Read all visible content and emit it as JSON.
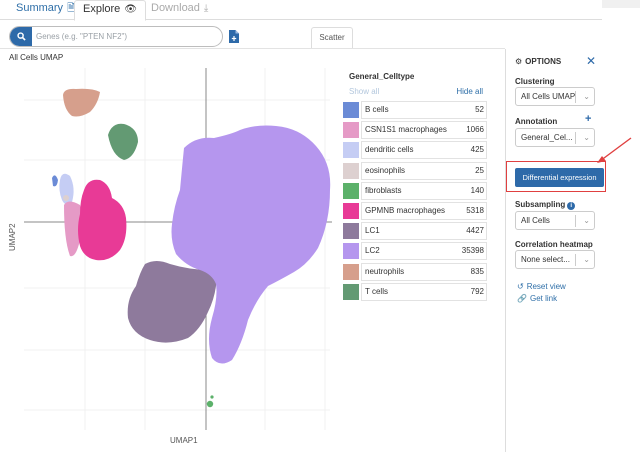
{
  "tabs": {
    "summary": "Summary",
    "explore": "Explore",
    "download": "Download"
  },
  "search": {
    "placeholder": "Genes (e.g. \"PTEN NF2\")",
    "value": ""
  },
  "view_tab": "Scatter",
  "plot": {
    "title": "All Cells UMAP",
    "xlabel": "UMAP1",
    "ylabel": "UMAP2"
  },
  "legend": {
    "title": "General_Celltype",
    "show_all": "Show all",
    "hide_all": "Hide all",
    "items": [
      {
        "label": "B cells",
        "count": "52",
        "color": "#6b8bd6"
      },
      {
        "label": "CSN1S1 macrophages",
        "count": "1066",
        "color": "#e59ac6"
      },
      {
        "label": "dendritic cells",
        "count": "425",
        "color": "#c5cdf4"
      },
      {
        "label": "eosinophils",
        "count": "25",
        "color": "#ddd0d0"
      },
      {
        "label": "fibroblasts",
        "count": "140",
        "color": "#5cb16a"
      },
      {
        "label": "GPMNB macrophages",
        "count": "5318",
        "color": "#e83a96"
      },
      {
        "label": "LC1",
        "count": "4427",
        "color": "#8e7a9c"
      },
      {
        "label": "LC2",
        "count": "35398",
        "color": "#b596ee"
      },
      {
        "label": "neutrophils",
        "count": "835",
        "color": "#d69f8c"
      },
      {
        "label": "T cells",
        "count": "792",
        "color": "#639a73"
      }
    ]
  },
  "options": {
    "title": "OPTIONS",
    "clustering_label": "Clustering",
    "clustering_value": "All Cells UMAP",
    "annotation_label": "Annotation",
    "annotation_value": "General_Cel...",
    "diff_button": "Differential expression",
    "subsampling_label": "Subsampling",
    "subsampling_value": "All Cells",
    "heatmap_label": "Correlation heatmap",
    "heatmap_value": "None select...",
    "reset_view": "Reset view",
    "get_link": "Get link"
  },
  "colors": {
    "accent": "#2e6aa9",
    "highlight_frame": "#e04040"
  }
}
